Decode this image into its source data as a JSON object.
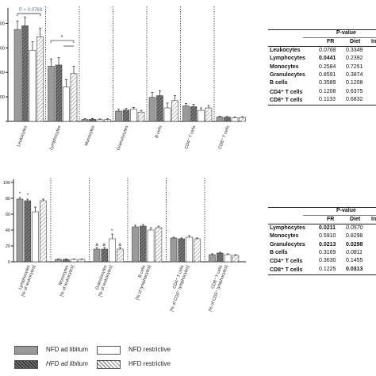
{
  "chart_data": [
    {
      "type": "bar",
      "panel": "top",
      "ylabel": "",
      "yticks": [
        "",
        "0000",
        "0000",
        "0000",
        "0000"
      ],
      "categories": [
        "Leukocytes",
        "Lymphocytes",
        "Monocytes",
        "Granulocytes",
        "B cells",
        "CD4⁺ T cells",
        "CD8⁺ T cells"
      ],
      "series": [
        {
          "name": "NFD ad libitum",
          "values": [
            37500,
            22500,
            800,
            4200,
            9800,
            6300,
            1800
          ],
          "errors": [
            3500,
            3000,
            300,
            700,
            2000,
            1000,
            300
          ]
        },
        {
          "name": "HFD ad libitum",
          "values": [
            39000,
            23000,
            900,
            4600,
            10500,
            6000,
            1700
          ],
          "errors": [
            3500,
            3000,
            300,
            700,
            2000,
            1000,
            300
          ]
        },
        {
          "name": "NFD restrictive",
          "values": [
            29000,
            14000,
            700,
            5000,
            5500,
            4500,
            1500
          ],
          "errors": [
            3500,
            3000,
            300,
            700,
            2000,
            1000,
            300
          ]
        },
        {
          "name": "HFD restrictive",
          "values": [
            34500,
            19500,
            750,
            3800,
            8500,
            5500,
            1600
          ],
          "errors": [
            3500,
            3000,
            300,
            700,
            2000,
            1000,
            300
          ]
        }
      ],
      "ylim": [
        0,
        45000
      ],
      "annotations": [
        {
          "text": "P = 0.0768"
        },
        {
          "text": "*"
        }
      ]
    },
    {
      "type": "bar",
      "panel": "bottom",
      "ylabel": "",
      "yticks": [
        "0",
        "20",
        "40",
        "60",
        "80",
        "100"
      ],
      "ylim": [
        0,
        100
      ],
      "categories": [
        "Lymphocytes [% of leukocytes]",
        "Monocytes [% of leukocytes]",
        "Granulocytes [% of leukocytes]",
        "B cells [% of lymphocytes]",
        "CD4⁺ T cells [% of CD3⁺ lymphocytes]",
        "CD8⁺ T cells [% of CD3⁺ lymphocytes]"
      ],
      "series": [
        {
          "name": "NFD ad libitum",
          "values": [
            79,
            3,
            16,
            44,
            30,
            9
          ],
          "errors": [
            2,
            0.5,
            2,
            2,
            1,
            1
          ]
        },
        {
          "name": "HFD ad libitum",
          "values": [
            77,
            3,
            16,
            45,
            29,
            11
          ],
          "errors": [
            2,
            0.5,
            2,
            2,
            1,
            1
          ]
        },
        {
          "name": "NFD restrictive",
          "values": [
            63,
            3,
            29,
            40,
            31,
            9
          ],
          "errors": [
            6,
            0.5,
            6,
            3,
            2,
            1
          ]
        },
        {
          "name": "HFD restrictive",
          "values": [
            77,
            3,
            16,
            43,
            29,
            8
          ],
          "errors": [
            2,
            0.5,
            2,
            2,
            1,
            1
          ]
        }
      ],
      "annotations": [
        {
          "text": "*"
        },
        {
          "text": "a"
        }
      ]
    }
  ],
  "table_top": {
    "header_main": "P-value",
    "columns": [
      "FR",
      "Diet",
      "In"
    ],
    "rows": [
      {
        "label": "Leukocytes",
        "fr": "0.0768",
        "diet": "0.3349"
      },
      {
        "label": "Lymphocytes",
        "fr": "0.0441",
        "diet": "0.2392"
      },
      {
        "label": "Monocytes",
        "fr": "0.2584",
        "diet": "0.7251"
      },
      {
        "label": "Granulocytes",
        "fr": "0.8591",
        "diet": "0.3874"
      },
      {
        "label": "B cells",
        "fr": "0.3589",
        "diet": "0.1208"
      },
      {
        "label": "CD4⁺ T cells",
        "fr": "0.1208",
        "diet": "0.6375"
      },
      {
        "label": "CD8⁺ T cells",
        "fr": "0.1133",
        "diet": "0.6832"
      }
    ]
  },
  "table_bottom": {
    "header_main": "P-value",
    "columns": [
      "FR",
      "Diet",
      "In"
    ],
    "rows": [
      {
        "label": "Lymphocytes",
        "fr": "0.0211",
        "diet": "0.0570"
      },
      {
        "label": "Monocytes",
        "fr": "0.5910",
        "diet": "0.8298"
      },
      {
        "label": "Granulocytes",
        "fr": "0.0213",
        "diet": "0.0298"
      },
      {
        "label": "B cells",
        "fr": "0.3169",
        "diet": "0.0811"
      },
      {
        "label": "CD4⁺ T cells",
        "fr": "0.3630",
        "diet": "0.1455"
      },
      {
        "label": "CD8⁺ T cells",
        "fr": "0.1225",
        "diet": "0.0313"
      }
    ]
  },
  "legend": [
    {
      "label": "NFD ad libitum",
      "style": "solid-gray"
    },
    {
      "label": "HFD ad libitum",
      "style": "dark-hatch"
    },
    {
      "label": "NFD restrictive",
      "style": "white"
    },
    {
      "label": "HFD restrictive",
      "style": "light-hatch"
    }
  ],
  "colors": {
    "nfd_adlib": "#9a9a9a",
    "hfd_adlib": "#555555",
    "nfd_restr": "#ffffff",
    "hfd_restr": "#c8c8c8",
    "axis": "#222222"
  }
}
